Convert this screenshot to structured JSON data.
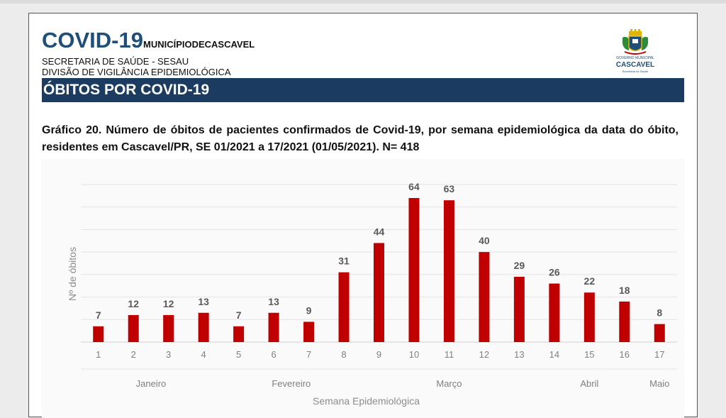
{
  "header": {
    "title_big": "COVID-19",
    "title_small": "MUNICÍPIODECASCAVEL",
    "line1": "SECRETARIA DE SAÚDE - SESAU",
    "line2": "DIVISÃO DE VIGILÂNCIA EPIDEMIOLÓGICA"
  },
  "logo": {
    "gov_text": "GOVERNO MUNICIPAL",
    "city": "CASCAVEL",
    "sec_text": "Secretaria de Saúde",
    "icon": "cascavel-coat-of-arms-icon"
  },
  "banner": {
    "text": "ÓBITOS POR COVID-19",
    "color": "#1b3c60"
  },
  "caption": "Gráfico 20. Número de óbitos de pacientes confirmados de Covid-19, por semana epidemiológica da data do óbito, residentes em Cascavel/PR,  SE 01/2021 a 17/2021 (01/05/2021). N= 418",
  "chart_data": {
    "type": "bar",
    "categories": [
      "1",
      "2",
      "3",
      "4",
      "5",
      "6",
      "7",
      "8",
      "9",
      "10",
      "11",
      "12",
      "13",
      "14",
      "15",
      "16",
      "17"
    ],
    "values": [
      7,
      12,
      12,
      13,
      7,
      13,
      9,
      31,
      44,
      64,
      63,
      40,
      29,
      26,
      22,
      18,
      8
    ],
    "months": [
      "Janeiro",
      "Fevereiro",
      "Março",
      "Abril",
      "Maio"
    ],
    "xlabel": "Semana Epidemiológica",
    "ylabel": "Nº de óbitos",
    "ylim": [
      0,
      70
    ],
    "grid": true,
    "bar_color": "#c00000"
  }
}
